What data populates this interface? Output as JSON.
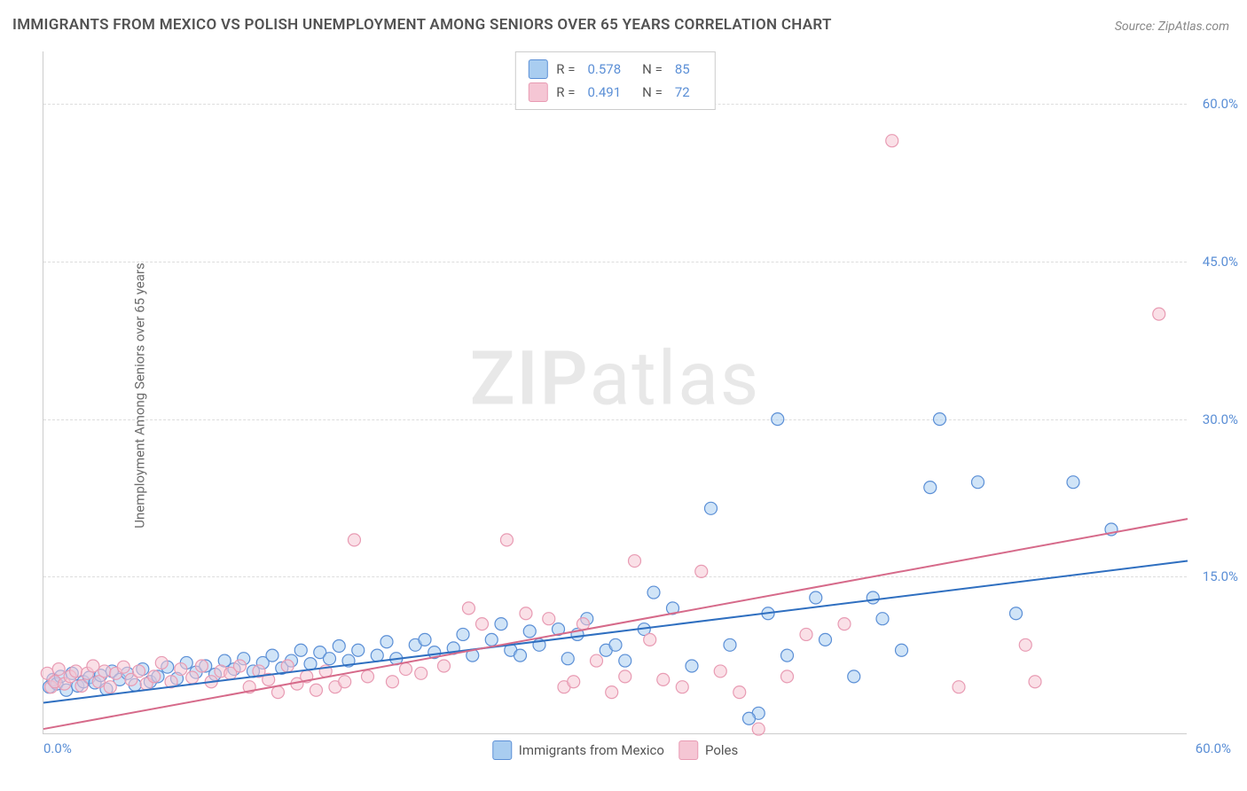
{
  "title": "IMMIGRANTS FROM MEXICO VS POLISH UNEMPLOYMENT AMONG SENIORS OVER 65 YEARS CORRELATION CHART",
  "source_label": "Source:",
  "source_value": "ZipAtlas.com",
  "y_axis_label": "Unemployment Among Seniors over 65 years",
  "watermark_bold": "ZIP",
  "watermark_rest": "atlas",
  "chart": {
    "type": "scatter",
    "xlim": [
      0,
      60
    ],
    "ylim": [
      0,
      65
    ],
    "x_ticks": [
      "0.0%",
      "60.0%"
    ],
    "y_ticks": [
      {
        "value": 15,
        "label": "15.0%"
      },
      {
        "value": 30,
        "label": "30.0%"
      },
      {
        "value": 45,
        "label": "45.0%"
      },
      {
        "value": 60,
        "label": "60.0%"
      }
    ],
    "grid_color": "#dddddd",
    "background_color": "#ffffff",
    "axis_color": "#cccccc",
    "tick_color": "#5b8fd6",
    "marker_radius": 7,
    "marker_opacity": 0.55,
    "line_width": 2,
    "series": [
      {
        "name": "Immigrants from Mexico",
        "color_fill": "#a9cdf0",
        "color_stroke": "#5b8fd6",
        "line_color": "#2f6fc0",
        "R": "0.578",
        "N": "85",
        "trend": {
          "x1": 0,
          "y1": 3,
          "x2": 60,
          "y2": 16.5
        },
        "points": [
          [
            0.3,
            4.5
          ],
          [
            0.5,
            5.2
          ],
          [
            0.7,
            4.8
          ],
          [
            0.9,
            5.5
          ],
          [
            1.2,
            4.2
          ],
          [
            1.5,
            5.8
          ],
          [
            1.8,
            4.6
          ],
          [
            2.1,
            5.0
          ],
          [
            2.4,
            5.4
          ],
          [
            2.7,
            4.9
          ],
          [
            3.0,
            5.6
          ],
          [
            3.3,
            4.3
          ],
          [
            3.6,
            6.0
          ],
          [
            4.0,
            5.2
          ],
          [
            4.4,
            5.8
          ],
          [
            4.8,
            4.7
          ],
          [
            5.2,
            6.2
          ],
          [
            5.6,
            5.0
          ],
          [
            6.0,
            5.5
          ],
          [
            6.5,
            6.4
          ],
          [
            7.0,
            5.3
          ],
          [
            7.5,
            6.8
          ],
          [
            8.0,
            5.9
          ],
          [
            8.5,
            6.5
          ],
          [
            9.0,
            5.7
          ],
          [
            9.5,
            7.0
          ],
          [
            10.0,
            6.2
          ],
          [
            10.5,
            7.2
          ],
          [
            11.0,
            6.0
          ],
          [
            11.5,
            6.8
          ],
          [
            12.0,
            7.5
          ],
          [
            12.5,
            6.3
          ],
          [
            13.0,
            7.0
          ],
          [
            13.5,
            8.0
          ],
          [
            14.0,
            6.7
          ],
          [
            14.5,
            7.8
          ],
          [
            15.0,
            7.2
          ],
          [
            15.5,
            8.4
          ],
          [
            16.0,
            7.0
          ],
          [
            16.5,
            8.0
          ],
          [
            17.5,
            7.5
          ],
          [
            18.0,
            8.8
          ],
          [
            18.5,
            7.2
          ],
          [
            19.5,
            8.5
          ],
          [
            20.0,
            9.0
          ],
          [
            20.5,
            7.8
          ],
          [
            21.5,
            8.2
          ],
          [
            22.0,
            9.5
          ],
          [
            22.5,
            7.5
          ],
          [
            23.5,
            9.0
          ],
          [
            24.0,
            10.5
          ],
          [
            24.5,
            8.0
          ],
          [
            25.0,
            7.5
          ],
          [
            25.5,
            9.8
          ],
          [
            26.0,
            8.5
          ],
          [
            27.0,
            10.0
          ],
          [
            27.5,
            7.2
          ],
          [
            28.0,
            9.5
          ],
          [
            28.5,
            11.0
          ],
          [
            29.5,
            8.0
          ],
          [
            30.0,
            8.5
          ],
          [
            30.5,
            7.0
          ],
          [
            31.5,
            10.0
          ],
          [
            32.0,
            13.5
          ],
          [
            33.0,
            12.0
          ],
          [
            34.0,
            6.5
          ],
          [
            35.0,
            21.5
          ],
          [
            36.0,
            8.5
          ],
          [
            37.5,
            2.0
          ],
          [
            38.0,
            11.5
          ],
          [
            38.5,
            30.0
          ],
          [
            39.0,
            7.5
          ],
          [
            40.5,
            13.0
          ],
          [
            41.0,
            9.0
          ],
          [
            42.5,
            5.5
          ],
          [
            43.5,
            13.0
          ],
          [
            44.0,
            11.0
          ],
          [
            45.0,
            8.0
          ],
          [
            46.5,
            23.5
          ],
          [
            47.0,
            30.0
          ],
          [
            49.0,
            24.0
          ],
          [
            51.0,
            11.5
          ],
          [
            54.0,
            24.0
          ],
          [
            56.0,
            19.5
          ],
          [
            37.0,
            1.5
          ]
        ]
      },
      {
        "name": "Poles",
        "color_fill": "#f5c6d4",
        "color_stroke": "#e89bb3",
        "line_color": "#d66a8a",
        "R": "0.491",
        "N": "72",
        "trend": {
          "x1": 0,
          "y1": 0.5,
          "x2": 60,
          "y2": 20.5
        },
        "points": [
          [
            0.2,
            5.8
          ],
          [
            0.4,
            4.5
          ],
          [
            0.6,
            5.0
          ],
          [
            0.8,
            6.2
          ],
          [
            1.1,
            4.8
          ],
          [
            1.4,
            5.5
          ],
          [
            1.7,
            6.0
          ],
          [
            2.0,
            4.6
          ],
          [
            2.3,
            5.8
          ],
          [
            2.6,
            6.5
          ],
          [
            2.9,
            5.0
          ],
          [
            3.2,
            6.0
          ],
          [
            3.5,
            4.5
          ],
          [
            3.8,
            5.8
          ],
          [
            4.2,
            6.4
          ],
          [
            4.6,
            5.2
          ],
          [
            5.0,
            6.0
          ],
          [
            5.4,
            4.8
          ],
          [
            5.8,
            5.5
          ],
          [
            6.2,
            6.8
          ],
          [
            6.7,
            5.0
          ],
          [
            7.2,
            6.2
          ],
          [
            7.8,
            5.4
          ],
          [
            8.3,
            6.5
          ],
          [
            8.8,
            5.0
          ],
          [
            9.3,
            6.0
          ],
          [
            9.8,
            5.8
          ],
          [
            10.3,
            6.5
          ],
          [
            10.8,
            4.5
          ],
          [
            11.3,
            6.0
          ],
          [
            11.8,
            5.2
          ],
          [
            12.3,
            4.0
          ],
          [
            12.8,
            6.5
          ],
          [
            13.3,
            4.8
          ],
          [
            13.8,
            5.5
          ],
          [
            14.3,
            4.2
          ],
          [
            14.8,
            6.0
          ],
          [
            15.3,
            4.5
          ],
          [
            15.8,
            5.0
          ],
          [
            16.3,
            18.5
          ],
          [
            17.0,
            5.5
          ],
          [
            18.3,
            5.0
          ],
          [
            19.0,
            6.2
          ],
          [
            19.8,
            5.8
          ],
          [
            21.0,
            6.5
          ],
          [
            22.3,
            12.0
          ],
          [
            23.0,
            10.5
          ],
          [
            24.3,
            18.5
          ],
          [
            25.3,
            11.5
          ],
          [
            26.5,
            11.0
          ],
          [
            27.3,
            4.5
          ],
          [
            27.8,
            5.0
          ],
          [
            28.3,
            10.5
          ],
          [
            29.0,
            7.0
          ],
          [
            29.8,
            4.0
          ],
          [
            30.5,
            5.5
          ],
          [
            31.0,
            16.5
          ],
          [
            31.8,
            9.0
          ],
          [
            32.5,
            5.2
          ],
          [
            33.5,
            4.5
          ],
          [
            34.5,
            15.5
          ],
          [
            35.5,
            6.0
          ],
          [
            36.5,
            4.0
          ],
          [
            37.5,
            0.5
          ],
          [
            39.0,
            5.5
          ],
          [
            40.0,
            9.5
          ],
          [
            42.0,
            10.5
          ],
          [
            44.5,
            56.5
          ],
          [
            48.0,
            4.5
          ],
          [
            51.5,
            8.5
          ],
          [
            52.0,
            5.0
          ],
          [
            58.5,
            40.0
          ]
        ]
      }
    ]
  },
  "legend": {
    "r_label": "R =",
    "n_label": "N ="
  }
}
